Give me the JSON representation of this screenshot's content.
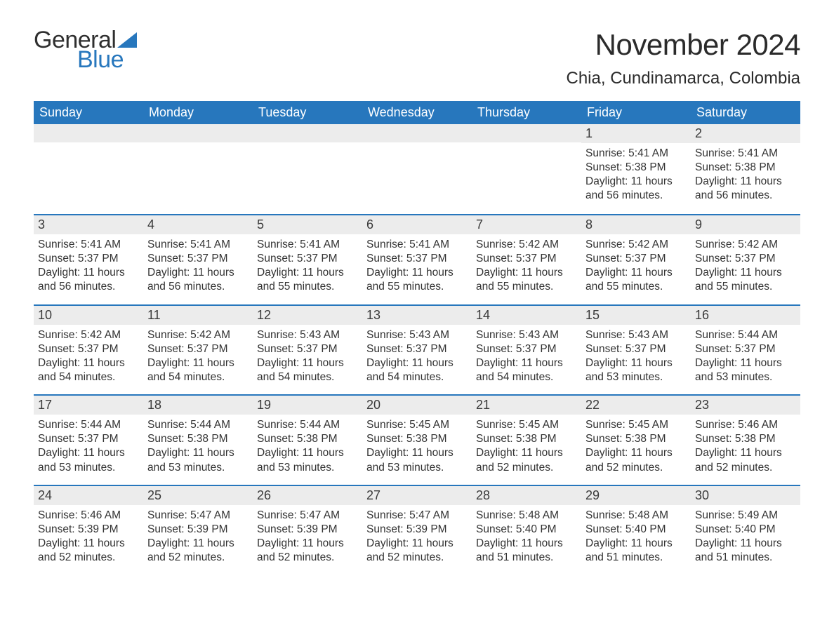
{
  "logo": {
    "general": "General",
    "blue": "Blue",
    "tri_color": "#2777bd"
  },
  "title": "November 2024",
  "location": "Chia, Cundinamarca, Colombia",
  "colors": {
    "header_bg": "#2777bd",
    "header_text": "#ffffff",
    "daynum_bg": "#ececec",
    "week_border": "#2777bd",
    "text": "#333333",
    "background": "#ffffff"
  },
  "fonts": {
    "title_size_pt": 32,
    "location_size_pt": 18,
    "dow_size_pt": 14,
    "daynum_size_pt": 14,
    "body_size_pt": 12
  },
  "days_of_week": [
    "Sunday",
    "Monday",
    "Tuesday",
    "Wednesday",
    "Thursday",
    "Friday",
    "Saturday"
  ],
  "weeks": [
    [
      {
        "n": "",
        "sunrise": "",
        "sunset": "",
        "daylight": ""
      },
      {
        "n": "",
        "sunrise": "",
        "sunset": "",
        "daylight": ""
      },
      {
        "n": "",
        "sunrise": "",
        "sunset": "",
        "daylight": ""
      },
      {
        "n": "",
        "sunrise": "",
        "sunset": "",
        "daylight": ""
      },
      {
        "n": "",
        "sunrise": "",
        "sunset": "",
        "daylight": ""
      },
      {
        "n": "1",
        "sunrise": "Sunrise: 5:41 AM",
        "sunset": "Sunset: 5:38 PM",
        "daylight": "Daylight: 11 hours and 56 minutes."
      },
      {
        "n": "2",
        "sunrise": "Sunrise: 5:41 AM",
        "sunset": "Sunset: 5:38 PM",
        "daylight": "Daylight: 11 hours and 56 minutes."
      }
    ],
    [
      {
        "n": "3",
        "sunrise": "Sunrise: 5:41 AM",
        "sunset": "Sunset: 5:37 PM",
        "daylight": "Daylight: 11 hours and 56 minutes."
      },
      {
        "n": "4",
        "sunrise": "Sunrise: 5:41 AM",
        "sunset": "Sunset: 5:37 PM",
        "daylight": "Daylight: 11 hours and 56 minutes."
      },
      {
        "n": "5",
        "sunrise": "Sunrise: 5:41 AM",
        "sunset": "Sunset: 5:37 PM",
        "daylight": "Daylight: 11 hours and 55 minutes."
      },
      {
        "n": "6",
        "sunrise": "Sunrise: 5:41 AM",
        "sunset": "Sunset: 5:37 PM",
        "daylight": "Daylight: 11 hours and 55 minutes."
      },
      {
        "n": "7",
        "sunrise": "Sunrise: 5:42 AM",
        "sunset": "Sunset: 5:37 PM",
        "daylight": "Daylight: 11 hours and 55 minutes."
      },
      {
        "n": "8",
        "sunrise": "Sunrise: 5:42 AM",
        "sunset": "Sunset: 5:37 PM",
        "daylight": "Daylight: 11 hours and 55 minutes."
      },
      {
        "n": "9",
        "sunrise": "Sunrise: 5:42 AM",
        "sunset": "Sunset: 5:37 PM",
        "daylight": "Daylight: 11 hours and 55 minutes."
      }
    ],
    [
      {
        "n": "10",
        "sunrise": "Sunrise: 5:42 AM",
        "sunset": "Sunset: 5:37 PM",
        "daylight": "Daylight: 11 hours and 54 minutes."
      },
      {
        "n": "11",
        "sunrise": "Sunrise: 5:42 AM",
        "sunset": "Sunset: 5:37 PM",
        "daylight": "Daylight: 11 hours and 54 minutes."
      },
      {
        "n": "12",
        "sunrise": "Sunrise: 5:43 AM",
        "sunset": "Sunset: 5:37 PM",
        "daylight": "Daylight: 11 hours and 54 minutes."
      },
      {
        "n": "13",
        "sunrise": "Sunrise: 5:43 AM",
        "sunset": "Sunset: 5:37 PM",
        "daylight": "Daylight: 11 hours and 54 minutes."
      },
      {
        "n": "14",
        "sunrise": "Sunrise: 5:43 AM",
        "sunset": "Sunset: 5:37 PM",
        "daylight": "Daylight: 11 hours and 54 minutes."
      },
      {
        "n": "15",
        "sunrise": "Sunrise: 5:43 AM",
        "sunset": "Sunset: 5:37 PM",
        "daylight": "Daylight: 11 hours and 53 minutes."
      },
      {
        "n": "16",
        "sunrise": "Sunrise: 5:44 AM",
        "sunset": "Sunset: 5:37 PM",
        "daylight": "Daylight: 11 hours and 53 minutes."
      }
    ],
    [
      {
        "n": "17",
        "sunrise": "Sunrise: 5:44 AM",
        "sunset": "Sunset: 5:37 PM",
        "daylight": "Daylight: 11 hours and 53 minutes."
      },
      {
        "n": "18",
        "sunrise": "Sunrise: 5:44 AM",
        "sunset": "Sunset: 5:38 PM",
        "daylight": "Daylight: 11 hours and 53 minutes."
      },
      {
        "n": "19",
        "sunrise": "Sunrise: 5:44 AM",
        "sunset": "Sunset: 5:38 PM",
        "daylight": "Daylight: 11 hours and 53 minutes."
      },
      {
        "n": "20",
        "sunrise": "Sunrise: 5:45 AM",
        "sunset": "Sunset: 5:38 PM",
        "daylight": "Daylight: 11 hours and 53 minutes."
      },
      {
        "n": "21",
        "sunrise": "Sunrise: 5:45 AM",
        "sunset": "Sunset: 5:38 PM",
        "daylight": "Daylight: 11 hours and 52 minutes."
      },
      {
        "n": "22",
        "sunrise": "Sunrise: 5:45 AM",
        "sunset": "Sunset: 5:38 PM",
        "daylight": "Daylight: 11 hours and 52 minutes."
      },
      {
        "n": "23",
        "sunrise": "Sunrise: 5:46 AM",
        "sunset": "Sunset: 5:38 PM",
        "daylight": "Daylight: 11 hours and 52 minutes."
      }
    ],
    [
      {
        "n": "24",
        "sunrise": "Sunrise: 5:46 AM",
        "sunset": "Sunset: 5:39 PM",
        "daylight": "Daylight: 11 hours and 52 minutes."
      },
      {
        "n": "25",
        "sunrise": "Sunrise: 5:47 AM",
        "sunset": "Sunset: 5:39 PM",
        "daylight": "Daylight: 11 hours and 52 minutes."
      },
      {
        "n": "26",
        "sunrise": "Sunrise: 5:47 AM",
        "sunset": "Sunset: 5:39 PM",
        "daylight": "Daylight: 11 hours and 52 minutes."
      },
      {
        "n": "27",
        "sunrise": "Sunrise: 5:47 AM",
        "sunset": "Sunset: 5:39 PM",
        "daylight": "Daylight: 11 hours and 52 minutes."
      },
      {
        "n": "28",
        "sunrise": "Sunrise: 5:48 AM",
        "sunset": "Sunset: 5:40 PM",
        "daylight": "Daylight: 11 hours and 51 minutes."
      },
      {
        "n": "29",
        "sunrise": "Sunrise: 5:48 AM",
        "sunset": "Sunset: 5:40 PM",
        "daylight": "Daylight: 11 hours and 51 minutes."
      },
      {
        "n": "30",
        "sunrise": "Sunrise: 5:49 AM",
        "sunset": "Sunset: 5:40 PM",
        "daylight": "Daylight: 11 hours and 51 minutes."
      }
    ]
  ]
}
